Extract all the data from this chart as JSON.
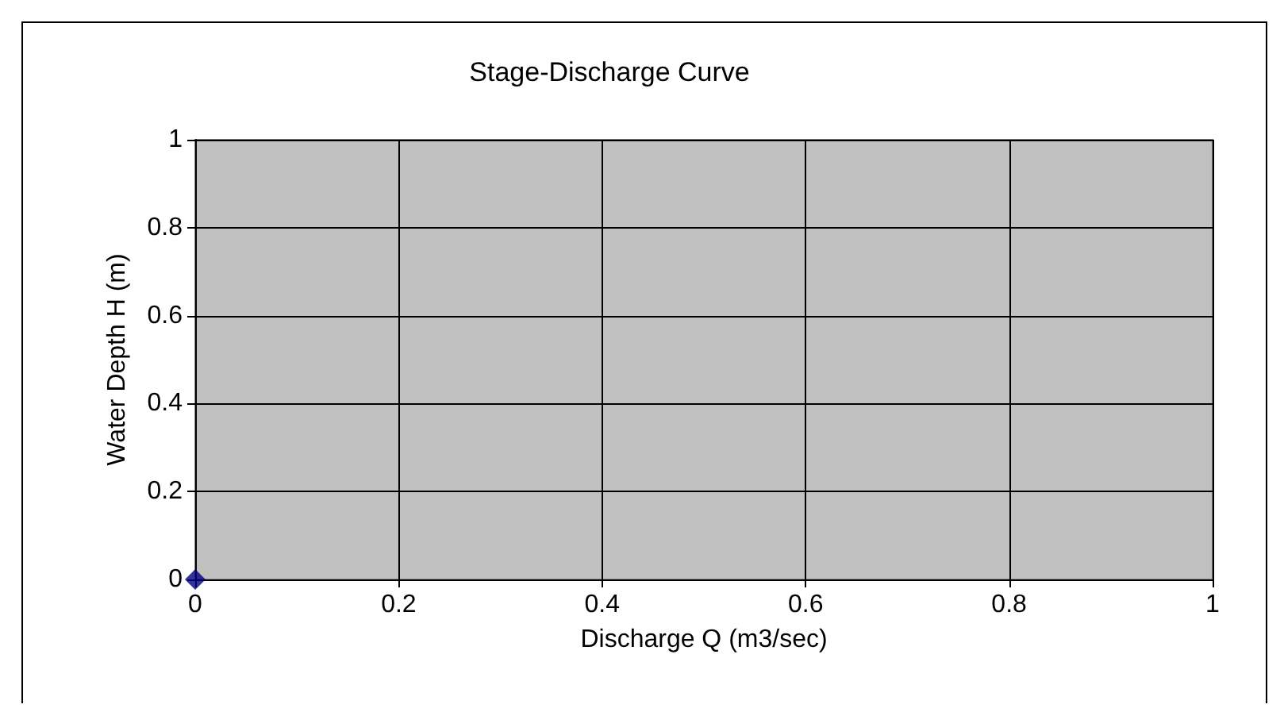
{
  "chart_data": {
    "type": "scatter",
    "title": "Stage-Discharge Curve",
    "xlabel": "Discharge Q (m3/sec)",
    "ylabel": "Water Depth H (m)",
    "x": [
      0
    ],
    "series": [
      {
        "color": "#000080",
        "values": [
          0
        ]
      }
    ],
    "xlim": [
      0,
      1
    ],
    "ylim": [
      0,
      1
    ],
    "xticks": [
      0,
      0.2,
      0.4,
      0.6,
      0.8,
      1
    ],
    "yticks": [
      0,
      0.2,
      0.4,
      0.6,
      0.8,
      1
    ],
    "grid": true,
    "marker": "diamond"
  }
}
